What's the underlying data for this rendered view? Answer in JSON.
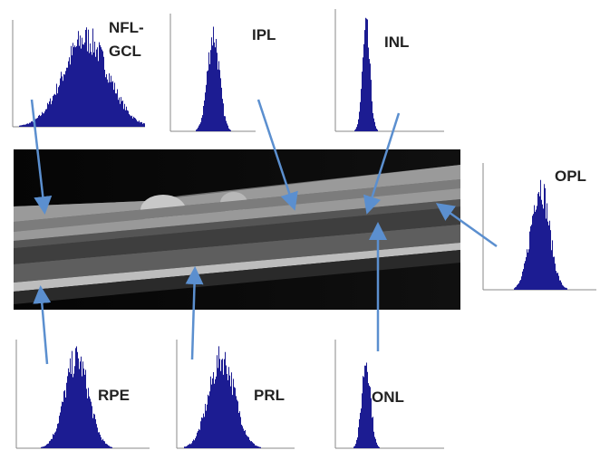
{
  "panels": [
    {
      "label": "NFL-GCL"
    },
    {
      "label": "IPL"
    },
    {
      "label": "INL"
    },
    {
      "label": "OPL"
    },
    {
      "label": "RPE"
    },
    {
      "label": "PRL"
    },
    {
      "label": "ONL"
    }
  ]
}
